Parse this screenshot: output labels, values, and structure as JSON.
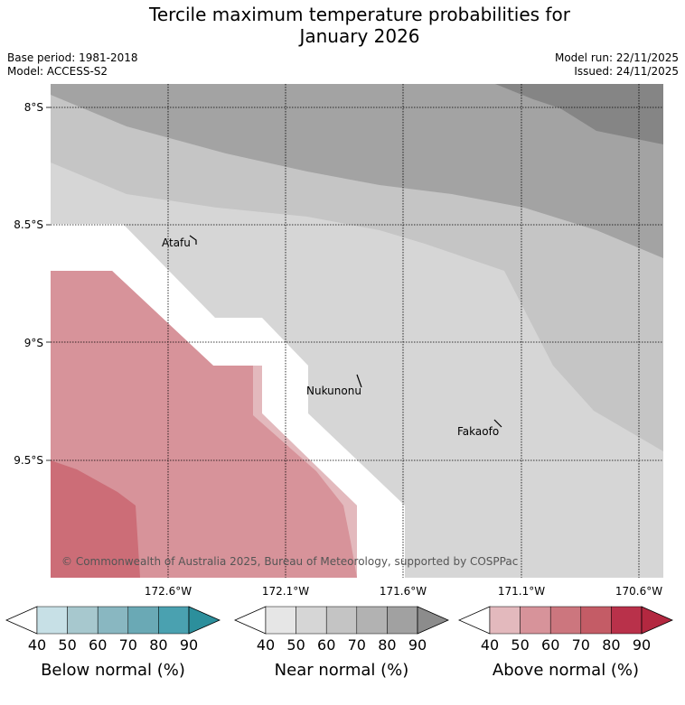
{
  "header": {
    "title_line1": "Tercile maximum temperature probabilities for",
    "title_line2": "January 2026",
    "base_period": "Base period: 1981-2018",
    "model": "Model: ACCESS-S2",
    "model_run": "Model run: 22/11/2025",
    "issued": "Issued: 24/11/2025"
  },
  "map": {
    "latitude_labels": [
      "8°S",
      "8.5°S",
      "9°S",
      "9.5°S"
    ],
    "longitude_labels": [
      "172.6°W",
      "172.1°W",
      "171.6°W",
      "171.1°W",
      "170.6°W"
    ],
    "places": [
      "Atafu",
      "Nukunonu",
      "Fakaofo"
    ],
    "copyright": "© Commonwealth of Australia 2025, Bureau of Meteorology, supported by COSPPac"
  },
  "legends": {
    "ticks": [
      "40",
      "50",
      "60",
      "70",
      "80",
      "90"
    ],
    "below": {
      "title": "Below normal (%)",
      "colors": [
        "#c7e0e6",
        "#a7c8ce",
        "#89b7c1",
        "#6aa9b5",
        "#4aa1b0",
        "#2c8f9c"
      ]
    },
    "near": {
      "title": "Near normal (%)",
      "colors": [
        "#e6e6e6",
        "#d6d6d6",
        "#c4c4c4",
        "#b2b2b2",
        "#a1a1a1",
        "#8c8c8c"
      ]
    },
    "above": {
      "title": "Above normal (%)",
      "colors": [
        "#e3b9bd",
        "#d7939a",
        "#cc767e",
        "#c45c66",
        "#b9314a",
        "#b32840"
      ]
    }
  }
}
